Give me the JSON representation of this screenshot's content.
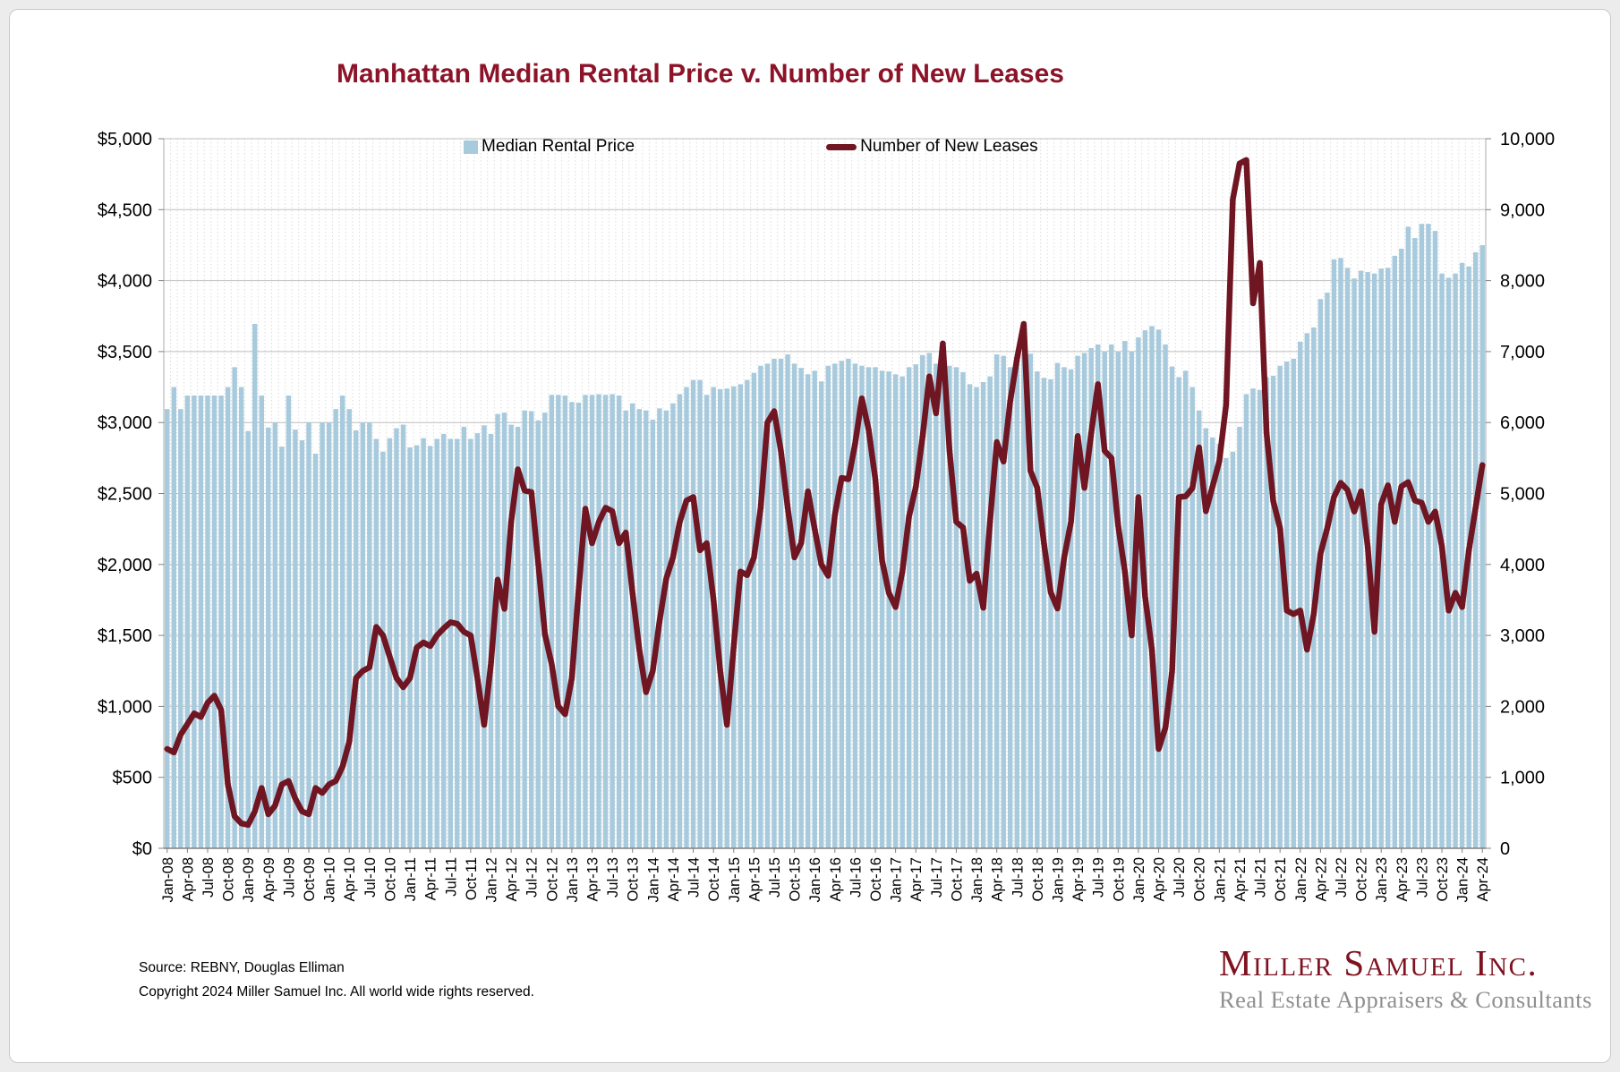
{
  "chart": {
    "title": "Manhattan Median Rental Price v. Number of New Leases",
    "legend": {
      "bar_label": "Median Rental Price",
      "line_label": "Number of New Leases"
    },
    "source_line1": "Source: REBNY, Douglas Elliman",
    "source_line2": "Copyright 2024 Miller Samuel Inc.  All world wide rights reserved."
  },
  "logo": {
    "name": "Miller Samuel Inc.",
    "tagline": "Real Estate Appraisers & Consultants"
  },
  "colors": {
    "title": "#8c1328",
    "bar": "#a7cadd",
    "line": "#701522",
    "grid": "#bfbfbf",
    "axis": "#808080",
    "logo_red": "#7e1220",
    "logo_gray": "#8f8f8f"
  },
  "chart_data": {
    "type": "combo",
    "x_start": "Jan-2008",
    "x_end": "Apr-2024",
    "x_interval": "monthly",
    "n_points": 196,
    "grid": true,
    "legend_position": "top-center",
    "x_tick_step_months": 3,
    "x_tick_labels": [
      "Jan-08",
      "Apr-08",
      "Jul-08",
      "Oct-08",
      "Jan-09",
      "Apr-09",
      "Jul-09",
      "Oct-09",
      "Jan-10",
      "Apr-10",
      "Jul-10",
      "Oct-10",
      "Jan-11",
      "Apr-11",
      "Jul-11",
      "Oct-11",
      "Jan-12",
      "Apr-12",
      "Jul-12",
      "Oct-12",
      "Jan-13",
      "Apr-13",
      "Jul-13",
      "Oct-13",
      "Jan-14",
      "Apr-14",
      "Jul-14",
      "Oct-14",
      "Jan-15",
      "Apr-15",
      "Jul-15",
      "Oct-15",
      "Jan-16",
      "Apr-16",
      "Jul-16",
      "Oct-16",
      "Jan-17",
      "Apr-17",
      "Jul-17",
      "Oct-17",
      "Jan-18",
      "Apr-18",
      "Jul-18",
      "Oct-18",
      "Jan-19",
      "Apr-19",
      "Jul-19",
      "Oct-19",
      "Jan-20",
      "Apr-20",
      "Jul-20",
      "Oct-20",
      "Jan-21",
      "Apr-21",
      "Jul-21",
      "Oct-21",
      "Jan-22",
      "Apr-22",
      "Jul-22",
      "Oct-22",
      "Jan-23",
      "Apr-23",
      "Jul-23",
      "Oct-23",
      "Jan-24",
      "Apr-24"
    ],
    "left_axis": {
      "label_format": "$#,##0",
      "min": 0,
      "max": 5000,
      "step": 500
    },
    "right_axis": {
      "label_format": "#,##0",
      "min": 0,
      "max": 10000,
      "step": 1000
    },
    "series": [
      {
        "name": "Median Rental Price",
        "type": "bar",
        "axis": "left",
        "color": "#a7cadd",
        "values": [
          3095,
          3250,
          3095,
          3190,
          3190,
          3190,
          3190,
          3190,
          3190,
          3250,
          3390,
          3250,
          2940,
          3695,
          3190,
          2965,
          3000,
          2830,
          3190,
          2950,
          2875,
          3000,
          2780,
          3000,
          3000,
          3095,
          3190,
          3095,
          2945,
          3000,
          3000,
          2885,
          2795,
          2890,
          2960,
          2985,
          2825,
          2840,
          2890,
          2835,
          2885,
          2920,
          2885,
          2885,
          2970,
          2885,
          2925,
          2980,
          2920,
          3060,
          3070,
          2985,
          2970,
          3085,
          3080,
          3015,
          3070,
          3195,
          3195,
          3190,
          3145,
          3140,
          3195,
          3195,
          3200,
          3195,
          3200,
          3190,
          3085,
          3135,
          3095,
          3085,
          3020,
          3100,
          3085,
          3135,
          3200,
          3250,
          3300,
          3300,
          3195,
          3250,
          3235,
          3240,
          3255,
          3270,
          3300,
          3350,
          3400,
          3415,
          3450,
          3450,
          3480,
          3415,
          3385,
          3340,
          3365,
          3290,
          3400,
          3415,
          3435,
          3450,
          3415,
          3400,
          3390,
          3390,
          3365,
          3360,
          3340,
          3325,
          3390,
          3410,
          3475,
          3490,
          3415,
          3400,
          3400,
          3390,
          3355,
          3270,
          3250,
          3285,
          3325,
          3480,
          3470,
          3390,
          3475,
          3485,
          3485,
          3360,
          3315,
          3305,
          3420,
          3390,
          3375,
          3470,
          3490,
          3525,
          3550,
          3500,
          3550,
          3500,
          3575,
          3500,
          3600,
          3650,
          3680,
          3655,
          3550,
          3395,
          3320,
          3365,
          3250,
          3085,
          2960,
          2895,
          2850,
          2750,
          2795,
          2970,
          3200,
          3240,
          3230,
          3320,
          3330,
          3400,
          3430,
          3450,
          3570,
          3630,
          3670,
          3870,
          3915,
          4150,
          4160,
          4090,
          4015,
          4070,
          4060,
          4050,
          4085,
          4090,
          4175,
          4225,
          4380,
          4300,
          4400,
          4400,
          4350,
          4050,
          4020,
          4050,
          4125,
          4100,
          4200,
          4250
        ]
      },
      {
        "name": "Number of New Leases",
        "type": "line",
        "axis": "right",
        "color": "#701522",
        "values": [
          1400,
          1350,
          1600,
          1750,
          1900,
          1850,
          2050,
          2150,
          1950,
          900,
          450,
          350,
          330,
          520,
          850,
          480,
          600,
          900,
          950,
          700,
          520,
          480,
          850,
          780,
          900,
          950,
          1150,
          1500,
          2400,
          2500,
          2550,
          3120,
          3000,
          2700,
          2400,
          2270,
          2400,
          2830,
          2900,
          2850,
          3000,
          3100,
          3185,
          3165,
          3050,
          3000,
          2400,
          1740,
          2600,
          3785,
          3375,
          4600,
          5340,
          5040,
          5020,
          4040,
          3020,
          2600,
          2000,
          1890,
          2400,
          3625,
          4785,
          4300,
          4600,
          4800,
          4750,
          4300,
          4450,
          3600,
          2800,
          2200,
          2500,
          3200,
          3800,
          4100,
          4600,
          4900,
          4950,
          4200,
          4300,
          3500,
          2500,
          1740,
          2850,
          3900,
          3850,
          4100,
          4800,
          6000,
          6160,
          5600,
          4800,
          4100,
          4300,
          5030,
          4500,
          4000,
          3840,
          4700,
          5220,
          5200,
          5700,
          6340,
          5900,
          5200,
          4050,
          3600,
          3400,
          3900,
          4680,
          5090,
          5800,
          6650,
          6130,
          7115,
          5600,
          4600,
          4520,
          3770,
          3870,
          3390,
          4600,
          5725,
          5450,
          6300,
          6900,
          7390,
          5320,
          5080,
          4300,
          3610,
          3380,
          4100,
          4600,
          5810,
          5080,
          5850,
          6540,
          5600,
          5500,
          4550,
          3900,
          3000,
          4950,
          3550,
          2800,
          1400,
          1700,
          2500,
          4950,
          4960,
          5075,
          5650,
          4750,
          5100,
          5455,
          6250,
          9145,
          9650,
          9700,
          7680,
          8250,
          5850,
          4890,
          4510,
          3350,
          3300,
          3350,
          2800,
          3300,
          4155,
          4510,
          4950,
          5150,
          5050,
          4745,
          5030,
          4255,
          3050,
          4850,
          5115,
          4600,
          5100,
          5160,
          4900,
          4870,
          4600,
          4745,
          4255,
          3350,
          3600,
          3400,
          4200,
          4800,
          5400
        ]
      }
    ]
  }
}
